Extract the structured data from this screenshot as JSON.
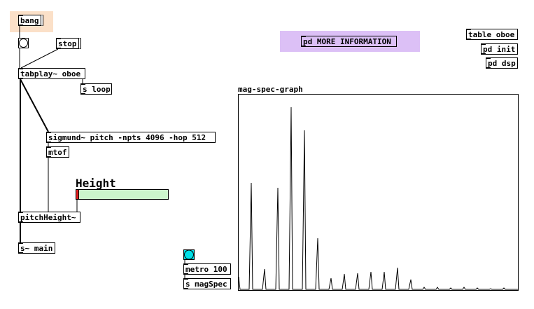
{
  "objects": {
    "bang": "bang",
    "stop": "stop",
    "tabplay": "tabplay~ oboe",
    "s_loop": "s loop",
    "sigmund": "sigmund~ pitch -npts 4096 -hop 512",
    "mtof": "mtof",
    "height_label": "Height",
    "pitch_height": "pitchHeight~",
    "s_main": "s~ main",
    "metro": "metro 100",
    "s_magspec": "s magSpec",
    "graph_label": "mag-spec-graph",
    "more_info": "pd MORE INFORMATION",
    "table_oboe": "table oboe",
    "pd_init": "pd init",
    "pd_dsp": "pd dsp"
  }
}
